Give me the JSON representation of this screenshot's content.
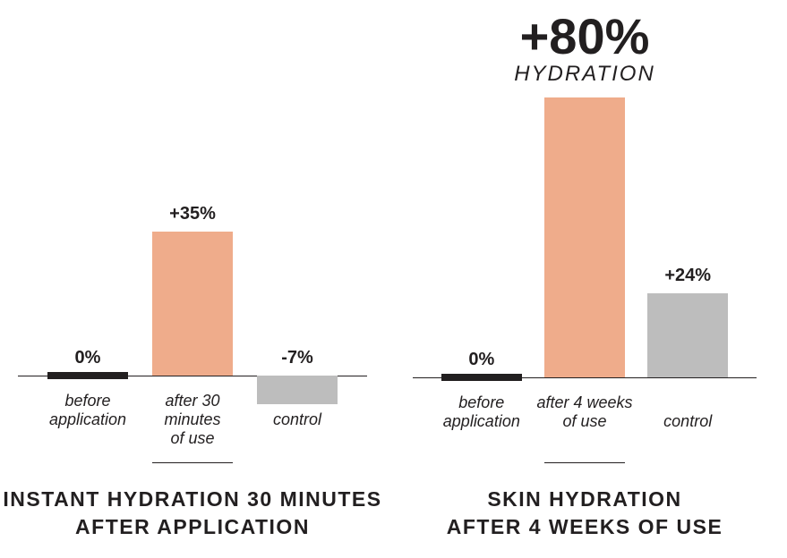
{
  "colors": {
    "ink": "#221f20",
    "accent_salmon": "#efac8b",
    "control_gray": "#bdbdbd",
    "background": "#ffffff"
  },
  "chart_data": [
    {
      "type": "bar",
      "title": "INSTANT HYDRATION 30 MINUTES AFTER APPLICATION",
      "title_lines": [
        "INSTANT HYDRATION 30 MINUTES",
        "AFTER APPLICATION"
      ],
      "headline": null,
      "categories": [
        "before application",
        "after 30 minutes of use",
        "control"
      ],
      "category_label_lines": [
        [
          "before",
          "application"
        ],
        [
          "after 30",
          "minutes",
          "of use"
        ],
        [
          "control"
        ]
      ],
      "values": [
        0,
        35,
        -7
      ],
      "value_labels": [
        "0%",
        "+35%",
        "-7%"
      ],
      "bar_colors": [
        "#221f20",
        "#efac8b",
        "#bdbdbd"
      ],
      "underlined_bar_index": 1,
      "xlabel": "",
      "ylabel": "",
      "ylim": [
        -10,
        40
      ],
      "grid": false,
      "legend": false
    },
    {
      "type": "bar",
      "title": "SKIN HYDRATION AFTER 4 WEEKS OF USE",
      "title_lines": [
        "SKIN HYDRATION",
        "AFTER 4 WEEKS OF USE"
      ],
      "headline": {
        "value": "+80%",
        "subtitle": "HYDRATION"
      },
      "categories": [
        "before application",
        "after 4 weeks of use",
        "control"
      ],
      "category_label_lines": [
        [
          "before",
          "application"
        ],
        [
          "after 4 weeks",
          "of use"
        ],
        [
          "control"
        ]
      ],
      "values": [
        0,
        80,
        24
      ],
      "value_labels": [
        "0%",
        "",
        "+24%"
      ],
      "bar_colors": [
        "#221f20",
        "#efac8b",
        "#bdbdbd"
      ],
      "underlined_bar_index": 1,
      "xlabel": "",
      "ylabel": "",
      "ylim": [
        -10,
        85
      ],
      "grid": false,
      "legend": false
    }
  ]
}
